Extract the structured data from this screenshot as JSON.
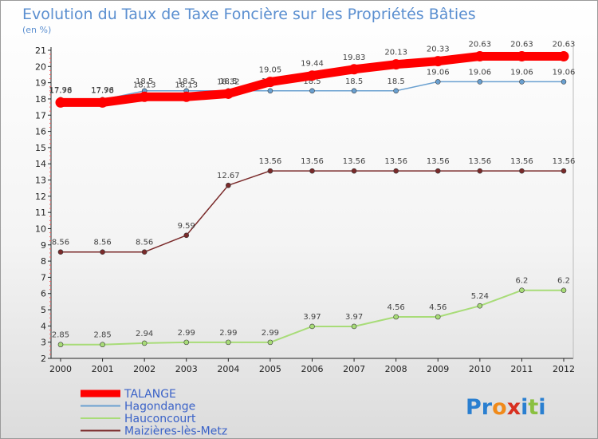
{
  "chart_data": {
    "type": "line",
    "title": "Evolution du Taux de Taxe Foncière sur les Propriétés Bâties",
    "subtitle": "(en %)",
    "x": [
      "2000",
      "2001",
      "2002",
      "2003",
      "2004",
      "2005",
      "2006",
      "2007",
      "2008",
      "2009",
      "2010",
      "2011",
      "2012"
    ],
    "ylim": [
      2,
      21
    ],
    "yticks": [
      2,
      3,
      4,
      5,
      6,
      7,
      8,
      9,
      10,
      11,
      12,
      13,
      14,
      15,
      16,
      17,
      18,
      19,
      20,
      21
    ],
    "grid": false,
    "legend_position": "bottom-left",
    "series": [
      {
        "name": "TALANGE",
        "color": "#ff0000",
        "values": [
          17.78,
          17.78,
          18.13,
          18.13,
          18.32,
          19.05,
          19.44,
          19.83,
          20.13,
          20.33,
          20.63,
          20.63,
          20.63
        ],
        "labels": [
          "17.78",
          "17.78",
          "18.13",
          "18.13",
          "18.32",
          "19.05",
          "19.44",
          "19.83",
          "20.13",
          "20.33",
          "20.63",
          "20.63",
          "20.63"
        ]
      },
      {
        "name": "Hagondange",
        "color": "#6aa0d0",
        "values": [
          17.96,
          17.96,
          18.5,
          18.5,
          18.5,
          18.5,
          18.5,
          18.5,
          18.5,
          19.06,
          19.06,
          19.06,
          19.06
        ],
        "labels": [
          "17.96",
          "17.96",
          "18.5",
          "18.5",
          "18.5",
          "18.5",
          "18.5",
          "18.5",
          "18.5",
          "19.06",
          "19.06",
          "19.06",
          "19.06"
        ]
      },
      {
        "name": "Hauconcourt",
        "color": "#a8dc78",
        "values": [
          2.85,
          2.85,
          2.94,
          2.99,
          2.99,
          2.99,
          3.97,
          3.97,
          4.56,
          4.56,
          5.24,
          6.2,
          6.2
        ],
        "labels": [
          "2.85",
          "2.85",
          "2.94",
          "2.99",
          "2.99",
          "2.99",
          "3.97",
          "3.97",
          "4.56",
          "4.56",
          "5.24",
          "6.2",
          "6.2"
        ]
      },
      {
        "name": "Maizières-lès-Metz",
        "color": "#7a2a2a",
        "values": [
          8.56,
          8.56,
          8.56,
          9.59,
          12.67,
          13.56,
          13.56,
          13.56,
          13.56,
          13.56,
          13.56,
          13.56,
          13.56
        ],
        "labels": [
          "8.56",
          "8.56",
          "8.56",
          "9.59",
          "12.67",
          "13.56",
          "13.56",
          "13.56",
          "13.56",
          "13.56",
          "13.56",
          "13.56",
          "13.56"
        ]
      }
    ]
  },
  "logo": {
    "text": "Proxiti",
    "letters": [
      "P",
      "r",
      "o",
      "x",
      "i",
      "t",
      "i"
    ],
    "colors": [
      "#2a7fd0",
      "#2a7fd0",
      "#f08a1a",
      "#d83020",
      "#2a7fd0",
      "#8ac040",
      "#2a7fd0"
    ]
  }
}
